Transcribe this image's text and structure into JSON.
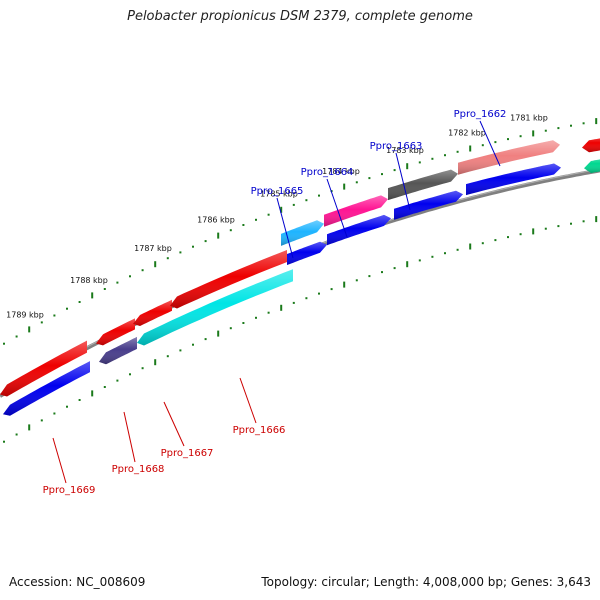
{
  "title": "Pelobacter propionicus DSM 2379, complete genome",
  "footer": {
    "accession": "Accession: NC_008609",
    "summary": "Topology: circular; Length: 4,008,000 bp; Genes: 3,643"
  },
  "colors": {
    "backbone": "#808080",
    "tick": "#1a7a1a",
    "forward_label": "#0000cc",
    "reverse_label": "#cc0000"
  },
  "kbp_labels": [
    "1781 kbp",
    "1782 kbp",
    "1783 kbp",
    "1784 kbp",
    "1785 kbp",
    "1786 kbp",
    "1787 kbp",
    "1788 kbp",
    "1789 kbp"
  ],
  "genes": [
    {
      "name": "Ppro_1662",
      "strand": "forward",
      "color": "#f08080"
    },
    {
      "name": "Ppro_1663",
      "strand": "forward",
      "color": "#555555"
    },
    {
      "name": "Ppro_1664",
      "strand": "forward",
      "color": "#ff1493"
    },
    {
      "name": "Ppro_1665",
      "strand": "forward",
      "color": "#1eb4ff"
    },
    {
      "name": "Ppro_1666",
      "strand": "reverse",
      "color": "#00e5e5"
    },
    {
      "name": "Ppro_1667",
      "strand": "reverse",
      "color": "#ee0000"
    },
    {
      "name": "Ppro_1668",
      "strand": "reverse",
      "color": "#483d8b"
    },
    {
      "name": "Ppro_1669",
      "strand": "reverse",
      "color": "#ee0000"
    }
  ],
  "unlabeled_features": [
    {
      "id": "edge-top-red",
      "color": "#ee0000"
    },
    {
      "id": "edge-green",
      "color": "#00d890"
    }
  ]
}
